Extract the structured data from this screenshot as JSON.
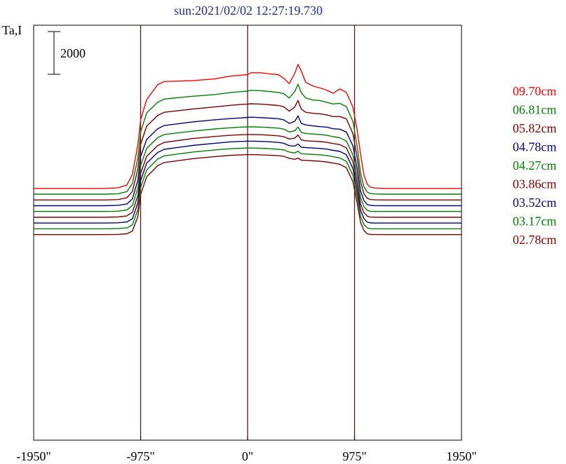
{
  "chart_data": {
    "type": "line",
    "title": "sun:2021/02/02 12:27:19.730",
    "ylabel": "Ta,I",
    "scale_bar_label": "2000",
    "scale_bar_value": 2000,
    "x_ticks": [
      "-1950\"",
      "-975\"",
      "0\"",
      "975\"",
      "1950\""
    ],
    "x_tick_values": [
      -1950,
      -975,
      0,
      975,
      1950
    ],
    "xlim": [
      -1950,
      1950
    ],
    "vertical_markers": [
      -975,
      0,
      975
    ],
    "grid": false,
    "legend_position": "right",
    "series": [
      {
        "name": "09.70cm",
        "color": "#ff0000",
        "baseline": 0,
        "x": [
          -1950,
          -1300,
          -1180,
          -1100,
          -1050,
          -1000,
          -975,
          -920,
          -820,
          -760,
          -500,
          -300,
          -150,
          -50,
          0,
          30,
          120,
          200,
          280,
          330,
          380,
          430,
          460,
          490,
          530,
          600,
          660,
          720,
          780,
          840,
          900,
          960,
          1000,
          1030,
          1060,
          1090,
          1120,
          1160,
          1250,
          1500,
          1950
        ],
        "y": [
          400,
          400,
          430,
          560,
          1050,
          2450,
          3600,
          4550,
          5250,
          5400,
          5440,
          5520,
          5660,
          5700,
          5720,
          5810,
          5810,
          5760,
          5720,
          5550,
          5300,
          5780,
          6200,
          5900,
          5360,
          5180,
          5100,
          5000,
          4850,
          5050,
          4900,
          4200,
          3100,
          2000,
          1050,
          600,
          460,
          420,
          400,
          400,
          400
        ]
      },
      {
        "name": "06.81cm",
        "color": "#008000",
        "baseline": -270,
        "x": [
          -1950,
          -1300,
          -1180,
          -1100,
          -1050,
          -1000,
          -975,
          -920,
          -820,
          -760,
          -500,
          -300,
          -150,
          -50,
          0,
          30,
          120,
          200,
          280,
          330,
          380,
          430,
          460,
          490,
          530,
          600,
          660,
          720,
          780,
          840,
          900,
          960,
          1000,
          1030,
          1060,
          1090,
          1120,
          1160,
          1250,
          1500,
          1950
        ],
        "y": [
          400,
          400,
          420,
          520,
          900,
          2100,
          3300,
          4200,
          4700,
          4850,
          4980,
          5060,
          5160,
          5200,
          5220,
          5260,
          5240,
          5200,
          5160,
          5100,
          4900,
          5200,
          5550,
          5150,
          4900,
          4800,
          4780,
          4700,
          4620,
          4650,
          4500,
          3800,
          2600,
          1400,
          750,
          500,
          430,
          410,
          400,
          400,
          400
        ]
      },
      {
        "name": "05.82cm",
        "color": "#800000",
        "baseline": -540,
        "x": [
          -1950,
          -1300,
          -1180,
          -1100,
          -1050,
          -1000,
          -975,
          -920,
          -820,
          -760,
          -500,
          -300,
          -150,
          -50,
          0,
          30,
          120,
          200,
          280,
          330,
          380,
          430,
          460,
          490,
          530,
          600,
          660,
          720,
          780,
          840,
          900,
          960,
          1000,
          1030,
          1060,
          1090,
          1120,
          1160,
          1250,
          1500,
          1950
        ],
        "y": [
          400,
          400,
          420,
          500,
          800,
          1850,
          3000,
          3850,
          4350,
          4500,
          4650,
          4750,
          4830,
          4870,
          4880,
          4900,
          4880,
          4850,
          4820,
          4760,
          4550,
          4750,
          5050,
          4650,
          4500,
          4450,
          4430,
          4380,
          4300,
          4300,
          4200,
          3500,
          2350,
          1250,
          700,
          480,
          420,
          405,
          400,
          400,
          400
        ]
      },
      {
        "name": "04.78cm",
        "color": "#000080",
        "baseline": -810,
        "x": [
          -1950,
          -1300,
          -1180,
          -1100,
          -1050,
          -1000,
          -975,
          -920,
          -820,
          -760,
          -500,
          -300,
          -150,
          -50,
          0,
          30,
          120,
          200,
          280,
          330,
          380,
          430,
          460,
          490,
          530,
          600,
          660,
          720,
          780,
          840,
          900,
          960,
          1000,
          1030,
          1060,
          1090,
          1120,
          1160,
          1250,
          1500,
          1950
        ],
        "y": [
          400,
          400,
          420,
          480,
          720,
          1600,
          2700,
          3500,
          4000,
          4150,
          4320,
          4420,
          4480,
          4510,
          4530,
          4540,
          4520,
          4500,
          4470,
          4420,
          4250,
          4350,
          4600,
          4250,
          4180,
          4130,
          4100,
          4080,
          4000,
          3980,
          3850,
          3200,
          2100,
          1100,
          650,
          460,
          415,
          403,
          400,
          400,
          400
        ]
      },
      {
        "name": "04.27cm",
        "color": "#008000",
        "baseline": -1080,
        "x": [
          -1950,
          -1300,
          -1180,
          -1100,
          -1050,
          -1000,
          -975,
          -920,
          -820,
          -760,
          -500,
          -300,
          -150,
          -50,
          0,
          30,
          120,
          200,
          280,
          330,
          380,
          430,
          460,
          490,
          530,
          600,
          660,
          720,
          780,
          840,
          900,
          960,
          1000,
          1030,
          1060,
          1090,
          1120,
          1160,
          1250,
          1500,
          1950
        ],
        "y": [
          400,
          400,
          415,
          470,
          680,
          1500,
          2550,
          3350,
          3850,
          4000,
          4160,
          4260,
          4320,
          4350,
          4360,
          4360,
          4350,
          4330,
          4300,
          4250,
          4120,
          4180,
          4350,
          4100,
          4050,
          4020,
          4000,
          3970,
          3900,
          3850,
          3700,
          3050,
          2000,
          1050,
          630,
          455,
          412,
          402,
          400,
          400,
          400
        ]
      },
      {
        "name": "03.86cm",
        "color": "#800000",
        "baseline": -1350,
        "x": [
          -1950,
          -1300,
          -1180,
          -1100,
          -1050,
          -1000,
          -975,
          -920,
          -820,
          -760,
          -500,
          -300,
          -150,
          -50,
          0,
          30,
          120,
          200,
          280,
          330,
          380,
          430,
          460,
          490,
          530,
          600,
          660,
          720,
          780,
          840,
          900,
          960,
          1000,
          1030,
          1060,
          1090,
          1120,
          1160,
          1250,
          1500,
          1950
        ],
        "y": [
          400,
          400,
          415,
          460,
          640,
          1420,
          2450,
          3250,
          3750,
          3900,
          4080,
          4180,
          4240,
          4260,
          4270,
          4270,
          4260,
          4240,
          4210,
          4170,
          4060,
          4100,
          4250,
          4020,
          3980,
          3960,
          3940,
          3910,
          3850,
          3800,
          3650,
          3000,
          1950,
          1020,
          620,
          450,
          410,
          402,
          400,
          400,
          400
        ]
      },
      {
        "name": "03.52cm",
        "color": "#000080",
        "baseline": -1620,
        "x": [
          -1950,
          -1300,
          -1180,
          -1100,
          -1050,
          -1000,
          -975,
          -920,
          -820,
          -760,
          -500,
          -300,
          -150,
          -50,
          0,
          30,
          120,
          200,
          280,
          330,
          380,
          430,
          460,
          490,
          530,
          600,
          660,
          720,
          780,
          840,
          900,
          960,
          1000,
          1030,
          1060,
          1090,
          1120,
          1160,
          1250,
          1500,
          1950
        ],
        "y": [
          400,
          400,
          412,
          450,
          600,
          1350,
          2380,
          3200,
          3700,
          3850,
          4030,
          4130,
          4200,
          4220,
          4230,
          4230,
          4220,
          4200,
          4170,
          4130,
          4020,
          4000,
          4100,
          3950,
          3930,
          3910,
          3890,
          3860,
          3800,
          3750,
          3600,
          2950,
          1900,
          1000,
          610,
          445,
          408,
          401,
          400,
          400,
          400
        ]
      },
      {
        "name": "03.17cm",
        "color": "#008000",
        "baseline": -1890,
        "x": [
          -1950,
          -1300,
          -1180,
          -1100,
          -1050,
          -1000,
          -975,
          -920,
          -820,
          -760,
          -500,
          -300,
          -150,
          -50,
          0,
          30,
          120,
          200,
          280,
          330,
          380,
          430,
          460,
          490,
          530,
          600,
          660,
          720,
          780,
          840,
          900,
          960,
          1000,
          1030,
          1060,
          1090,
          1120,
          1160,
          1250,
          1500,
          1950
        ],
        "y": [
          400,
          400,
          410,
          445,
          580,
          1300,
          2330,
          3150,
          3660,
          3810,
          3990,
          4090,
          4150,
          4170,
          4180,
          4180,
          4170,
          4150,
          4120,
          4090,
          3990,
          3950,
          4030,
          3910,
          3900,
          3880,
          3860,
          3830,
          3770,
          3720,
          3560,
          2900,
          1870,
          980,
          600,
          440,
          406,
          401,
          400,
          400,
          400
        ]
      },
      {
        "name": "02.78cm",
        "color": "#800000",
        "baseline": -2160,
        "x": [
          -1950,
          -1300,
          -1180,
          -1100,
          -1050,
          -1000,
          -975,
          -920,
          -820,
          -760,
          -500,
          -300,
          -150,
          -50,
          0,
          30,
          120,
          200,
          280,
          330,
          380,
          430,
          460,
          490,
          530,
          600,
          660,
          720,
          780,
          840,
          900,
          960,
          1000,
          1030,
          1060,
          1090,
          1120,
          1160,
          1250,
          1500,
          1950
        ],
        "y": [
          400,
          400,
          410,
          440,
          560,
          1250,
          2280,
          3100,
          3620,
          3770,
          3950,
          4050,
          4110,
          4130,
          4140,
          4140,
          4130,
          4110,
          4090,
          4060,
          3970,
          3920,
          3980,
          3880,
          3870,
          3850,
          3830,
          3800,
          3740,
          3690,
          3530,
          2870,
          1850,
          970,
          600,
          440,
          405,
          401,
          400,
          400,
          400
        ]
      }
    ]
  }
}
